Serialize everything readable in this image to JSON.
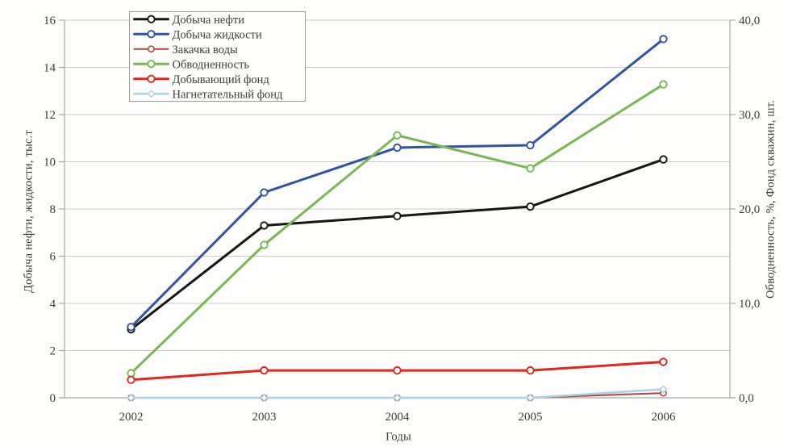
{
  "page": {
    "background": "#fdfdfb",
    "grid_color": "#c9c9c9",
    "axis_color": "#a8a8a8",
    "text_color": "#3c3c3c"
  },
  "chart_data": {
    "type": "line",
    "title": "",
    "xlabel": "Годы",
    "ylabel_left": "Добыча нефти, жидкости, тыс.т",
    "ylabel_right": "Обводненность, %, Фонд скважин, шт.",
    "x_categories": [
      "2002",
      "2003",
      "2004",
      "2005",
      "2006"
    ],
    "yticks_left": [
      "0",
      "2",
      "4",
      "6",
      "8",
      "10",
      "12",
      "14",
      "16"
    ],
    "ylim_left": [
      0,
      16
    ],
    "yticks_right": [
      "0,0",
      "10,0",
      "20,0",
      "30,0",
      "40,0"
    ],
    "ylim_right": [
      0,
      40
    ],
    "grid": "horizontal",
    "legend_position": "top-left-inside",
    "series": [
      {
        "name": "Добыча нефти",
        "axis": "left",
        "color": "#161616",
        "marker": "circle",
        "width": 3,
        "values": [
          2.9,
          7.3,
          7.7,
          8.1,
          10.1
        ]
      },
      {
        "name": "Добыча жидкости",
        "axis": "left",
        "color": "#3354a3",
        "marker": "circle",
        "width": 3,
        "values": [
          3.0,
          8.7,
          10.6,
          10.7,
          15.2
        ]
      },
      {
        "name": "Закачка воды",
        "axis": "left",
        "color": "#b2443c",
        "marker": "circle",
        "width": 2,
        "values": [
          0,
          0,
          0,
          0,
          0.2
        ]
      },
      {
        "name": "Обводненность",
        "axis": "right",
        "color": "#78b751",
        "marker": "circle",
        "width": 3,
        "values": [
          2.6,
          16.2,
          27.8,
          24.3,
          33.2
        ]
      },
      {
        "name": "Добывающий фонд",
        "axis": "right",
        "color": "#e0261d",
        "marker": "circle",
        "width": 3,
        "values": [
          1.9,
          2.9,
          2.9,
          2.9,
          3.8
        ]
      },
      {
        "name": "Нагнетательный фонд",
        "axis": "right",
        "color": "#aad2e8",
        "marker": "diamond",
        "width": 2.6,
        "values": [
          0,
          0,
          0,
          0,
          0.9
        ]
      }
    ]
  }
}
